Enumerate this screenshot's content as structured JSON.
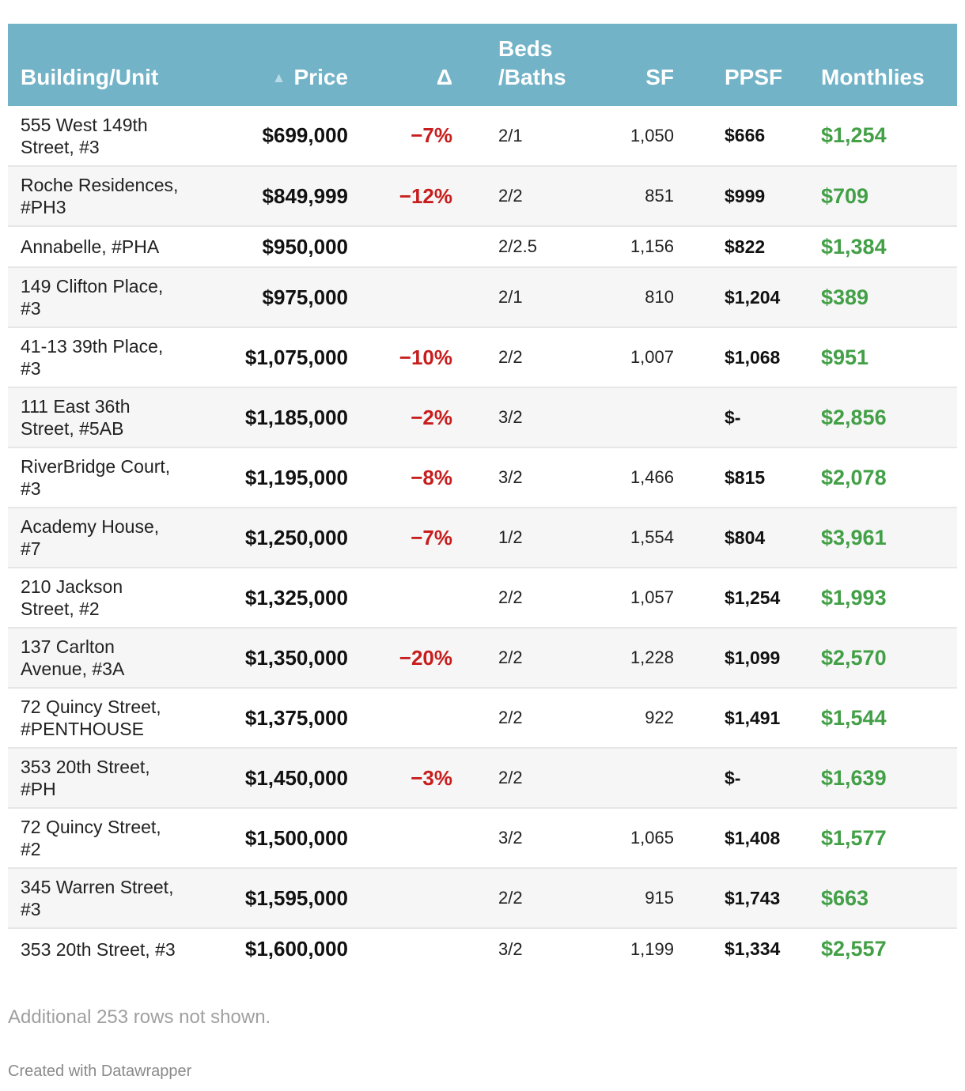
{
  "chart_data": {
    "type": "table",
    "columns": {
      "building": "Building/Unit",
      "price": "Price",
      "delta": "Δ",
      "beds_line1": "Beds",
      "beds_line2": "/Baths",
      "sf": "SF",
      "ppsf": "PPSF",
      "monthlies": "Monthlies"
    },
    "sort_icon": "▲",
    "rows": [
      {
        "building_l1": "555 West 149th",
        "building_l2": "Street, #3",
        "price": "$699,000",
        "delta": "−7%",
        "beds": "2/1",
        "sf": "1,050",
        "ppsf": "$666",
        "monthlies": "$1,254"
      },
      {
        "building_l1": "Roche Residences,",
        "building_l2": "#PH3",
        "price": "$849,999",
        "delta": "−12%",
        "beds": "2/2",
        "sf": "851",
        "ppsf": "$999",
        "monthlies": "$709"
      },
      {
        "building_l1": "Annabelle, #PHA",
        "building_l2": "",
        "price": "$950,000",
        "delta": "",
        "beds": "2/2.5",
        "sf": "1,156",
        "ppsf": "$822",
        "monthlies": "$1,384"
      },
      {
        "building_l1": "149 Clifton Place,",
        "building_l2": "#3",
        "price": "$975,000",
        "delta": "",
        "beds": "2/1",
        "sf": "810",
        "ppsf": "$1,204",
        "monthlies": "$389"
      },
      {
        "building_l1": "41-13 39th Place,",
        "building_l2": "#3",
        "price": "$1,075,000",
        "delta": "−10%",
        "beds": "2/2",
        "sf": "1,007",
        "ppsf": "$1,068",
        "monthlies": "$951"
      },
      {
        "building_l1": "111 East 36th",
        "building_l2": "Street, #5AB",
        "price": "$1,185,000",
        "delta": "−2%",
        "beds": "3/2",
        "sf": "",
        "ppsf": "$-",
        "monthlies": "$2,856"
      },
      {
        "building_l1": "RiverBridge Court,",
        "building_l2": "#3",
        "price": "$1,195,000",
        "delta": "−8%",
        "beds": "3/2",
        "sf": "1,466",
        "ppsf": "$815",
        "monthlies": "$2,078"
      },
      {
        "building_l1": "Academy House,",
        "building_l2": "#7",
        "price": "$1,250,000",
        "delta": "−7%",
        "beds": "1/2",
        "sf": "1,554",
        "ppsf": "$804",
        "monthlies": "$3,961"
      },
      {
        "building_l1": "210 Jackson",
        "building_l2": "Street, #2",
        "price": "$1,325,000",
        "delta": "",
        "beds": "2/2",
        "sf": "1,057",
        "ppsf": "$1,254",
        "monthlies": "$1,993"
      },
      {
        "building_l1": "137 Carlton",
        "building_l2": "Avenue, #3A",
        "price": "$1,350,000",
        "delta": "−20%",
        "beds": "2/2",
        "sf": "1,228",
        "ppsf": "$1,099",
        "monthlies": "$2,570"
      },
      {
        "building_l1": "72 Quincy Street,",
        "building_l2": "#PENTHOUSE",
        "price": "$1,375,000",
        "delta": "",
        "beds": "2/2",
        "sf": "922",
        "ppsf": "$1,491",
        "monthlies": "$1,544"
      },
      {
        "building_l1": "353 20th Street,",
        "building_l2": "#PH",
        "price": "$1,450,000",
        "delta": "−3%",
        "beds": "2/2",
        "sf": "",
        "ppsf": "$-",
        "monthlies": "$1,639"
      },
      {
        "building_l1": "72 Quincy Street,",
        "building_l2": "#2",
        "price": "$1,500,000",
        "delta": "",
        "beds": "3/2",
        "sf": "1,065",
        "ppsf": "$1,408",
        "monthlies": "$1,577"
      },
      {
        "building_l1": "345 Warren Street,",
        "building_l2": "#3",
        "price": "$1,595,000",
        "delta": "",
        "beds": "2/2",
        "sf": "915",
        "ppsf": "$1,743",
        "monthlies": "$663"
      },
      {
        "building_l1": "353 20th Street, #3",
        "building_l2": "",
        "price": "$1,600,000",
        "delta": "",
        "beds": "3/2",
        "sf": "1,199",
        "ppsf": "$1,334",
        "monthlies": "$2,557"
      }
    ],
    "notes": "Additional 253 rows not shown.",
    "credit": "Created with Datawrapper"
  }
}
